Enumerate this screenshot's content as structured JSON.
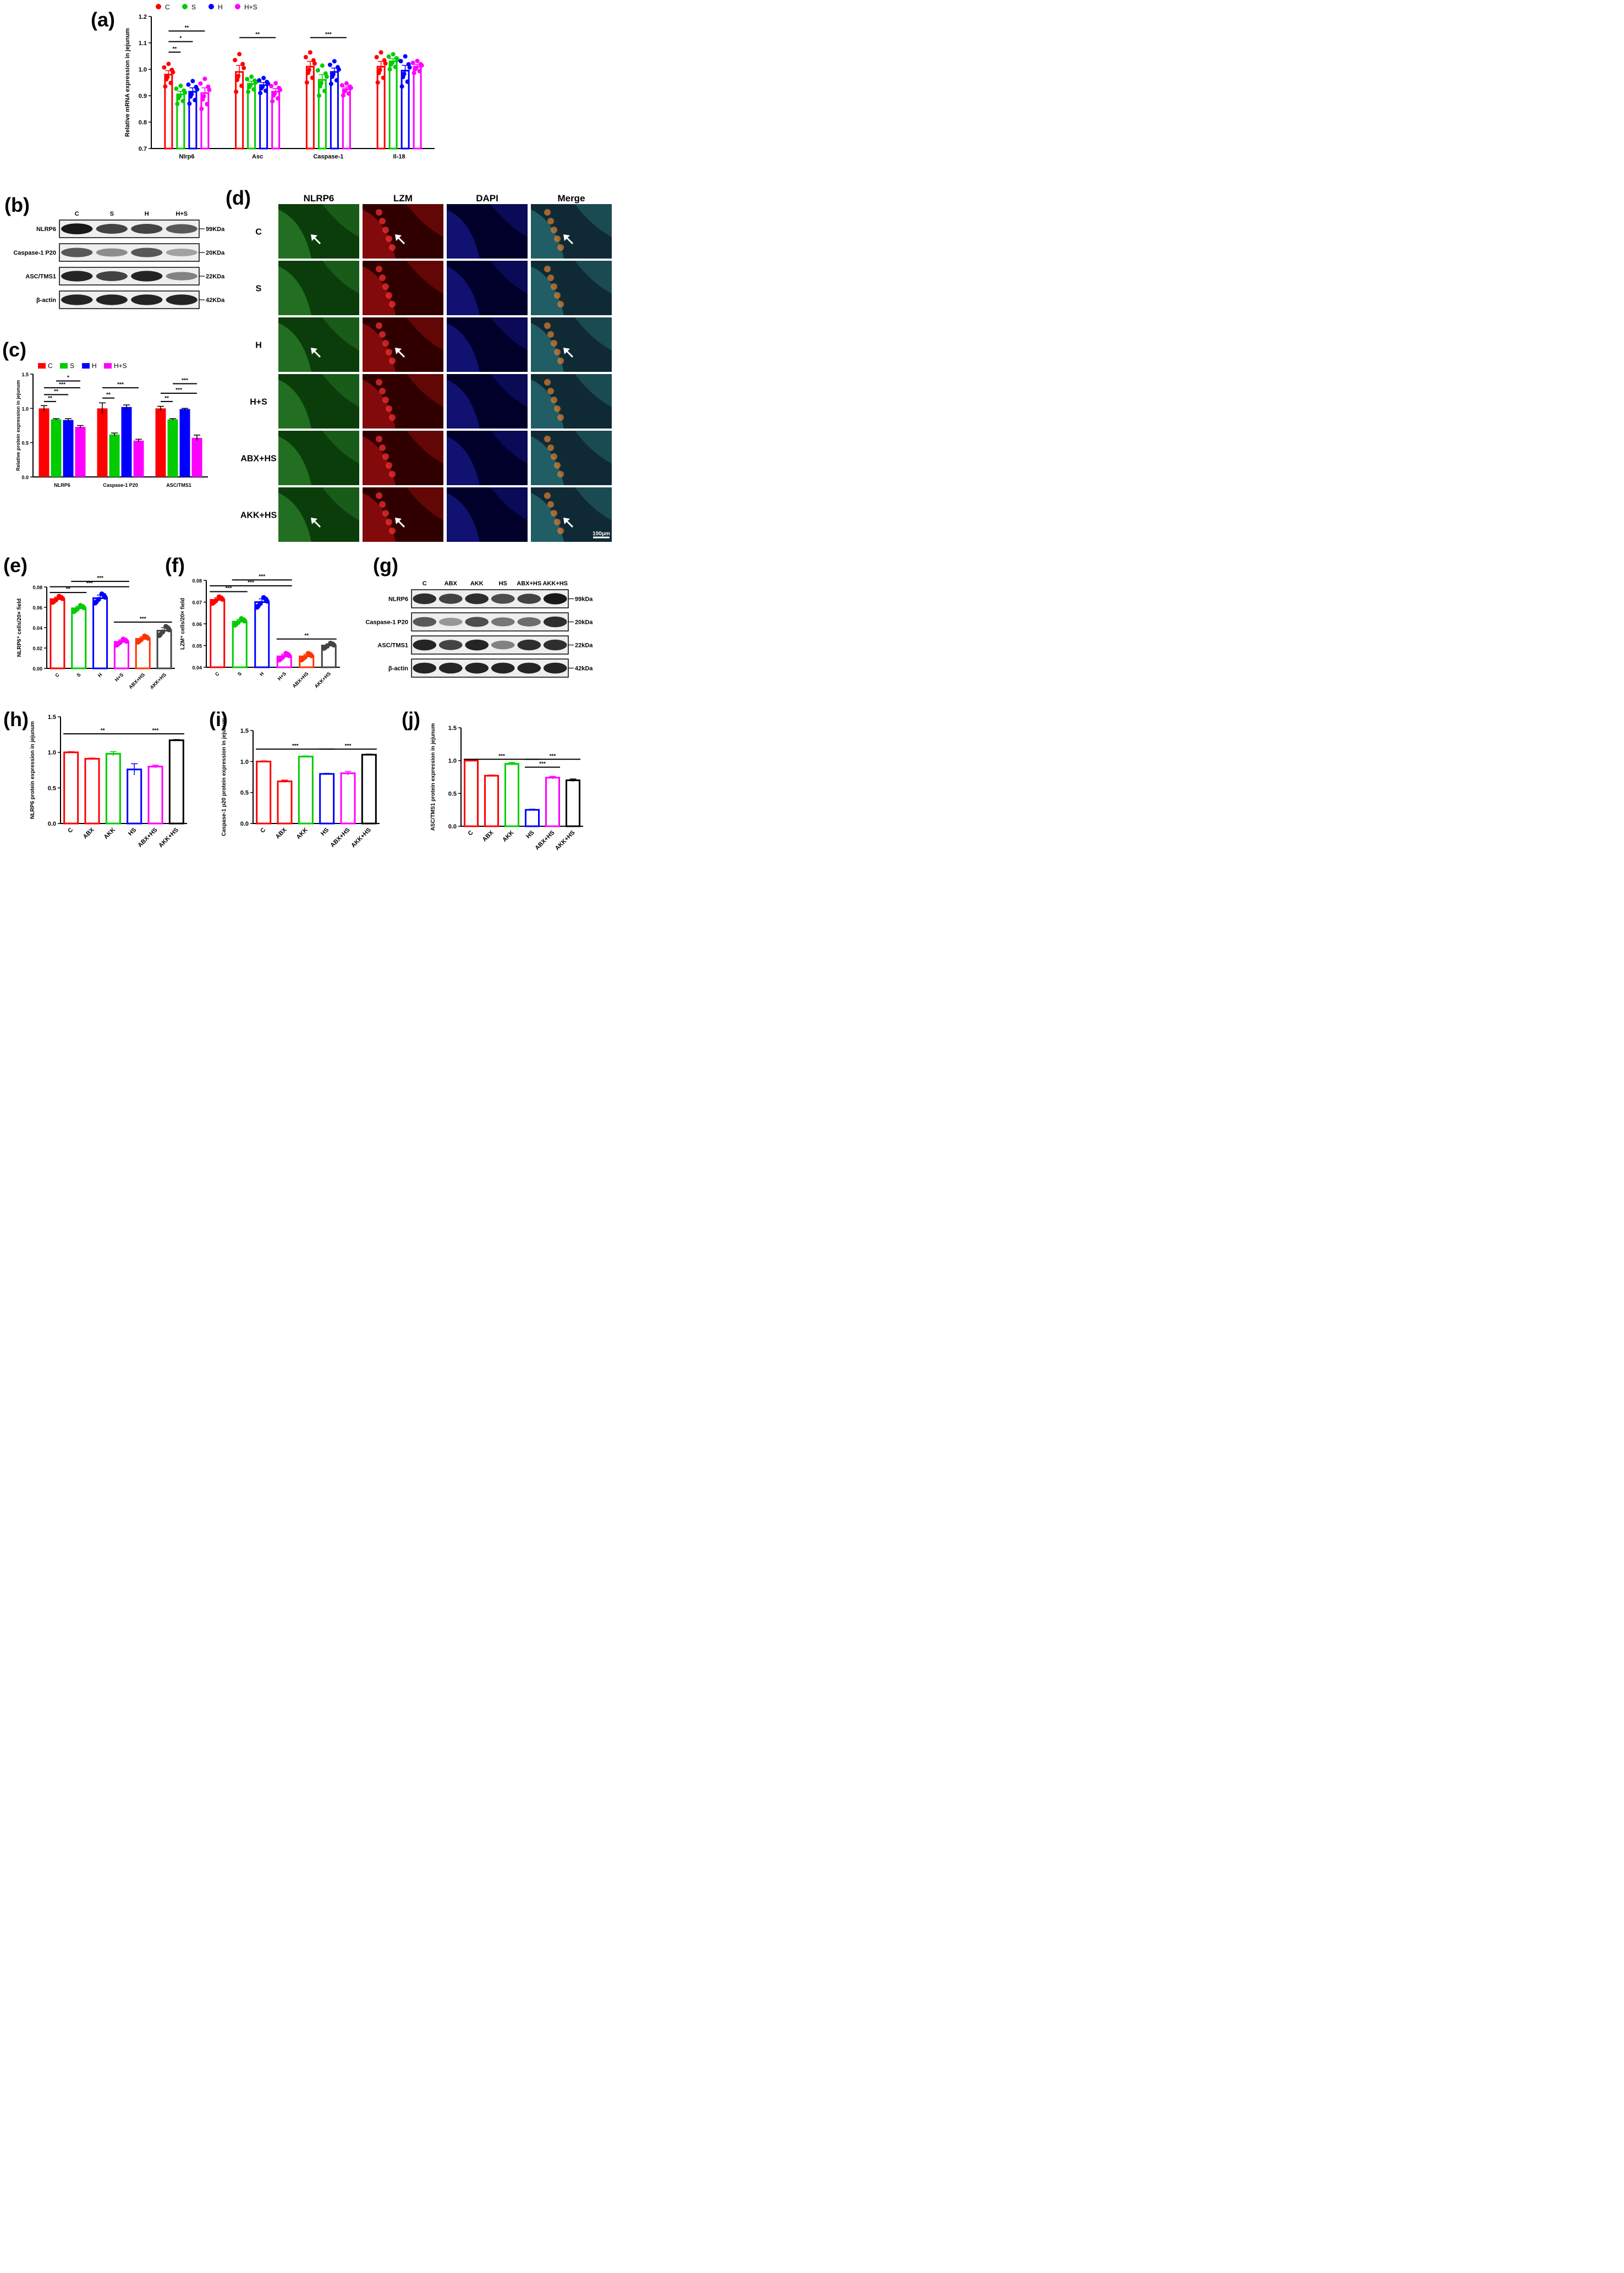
{
  "colors": {
    "C": "#ff0000",
    "S": "#00cc00",
    "H": "#0000ff",
    "H+S": "#ff00ff",
    "ABX": "#ff0000",
    "AKK": "#00cc00",
    "HS": "#0000ff",
    "ABX+HS": "#ff00ff",
    "AKK+HS": "#000000",
    "ABX+HS_e": "#ff3300",
    "AKK+HS_e": "#444444"
  },
  "panel_b": {
    "label": "(b)",
    "lanes": [
      "C",
      "S",
      "H",
      "H+S"
    ],
    "rows": [
      {
        "name": "NLRP6",
        "size": "99KDa",
        "intensity": [
          1.0,
          0.8,
          0.8,
          0.7
        ]
      },
      {
        "name": "Caspase-1 P20",
        "size": "20KDa",
        "intensity": [
          0.7,
          0.45,
          0.7,
          0.35
        ]
      },
      {
        "name": "ASC/TMS1",
        "size": "22KDa",
        "intensity": [
          0.95,
          0.8,
          0.95,
          0.5
        ]
      },
      {
        "name": "β-actin",
        "size": "42KDa",
        "intensity": [
          0.95,
          0.95,
          0.95,
          0.95
        ]
      }
    ]
  },
  "panel_d": {
    "label": "(d)",
    "columns": [
      "NLRP6",
      "LZM",
      "DAPI",
      "Merge"
    ],
    "rows": [
      "C",
      "S",
      "H",
      "H+S",
      "ABX+HS",
      "AKK+HS"
    ],
    "arrows": [
      true,
      false,
      true,
      false,
      false,
      true
    ],
    "scale_bar": "100μm"
  },
  "panel_g": {
    "label": "(g)",
    "lanes": [
      "C",
      "ABX",
      "AKK",
      "HS",
      "ABX+HS",
      "AKK+HS"
    ],
    "rows": [
      {
        "name": "NLRP6",
        "size": "99kDa",
        "intensity": [
          0.9,
          0.8,
          0.9,
          0.75,
          0.8,
          1.0
        ]
      },
      {
        "name": "Caspase-1 P20",
        "size": "20kDa",
        "intensity": [
          0.7,
          0.4,
          0.75,
          0.55,
          0.6,
          0.9
        ]
      },
      {
        "name": "ASC/TMS1",
        "size": "22kDa",
        "intensity": [
          0.95,
          0.8,
          0.95,
          0.5,
          0.9,
          0.9
        ]
      },
      {
        "name": "β-actin",
        "size": "42kDa",
        "intensity": [
          0.95,
          0.95,
          0.95,
          0.95,
          0.95,
          0.95
        ]
      }
    ]
  },
  "chart_data": [
    {
      "id": "a",
      "label": "(a)",
      "type": "bar",
      "ylabel": "Relative mRNA expression in jejunum",
      "ylim": [
        0.7,
        1.2
      ],
      "yticks": [
        0.7,
        0.8,
        0.9,
        1.0,
        1.1,
        1.2
      ],
      "categories": [
        "Nlrp6",
        "Asc",
        "Caspase-1",
        "Il-18"
      ],
      "legend": [
        "C",
        "S",
        "H",
        "H+S"
      ],
      "series": [
        {
          "name": "C",
          "values": [
            0.98,
            0.99,
            1.01,
            1.01
          ],
          "err": [
            0.015,
            0.025,
            0.02,
            0.02
          ]
        },
        {
          "name": "S",
          "values": [
            0.905,
            0.945,
            0.96,
            1.03
          ],
          "err": [
            0.012,
            0.01,
            0.02,
            0.01
          ]
        },
        {
          "name": "H",
          "values": [
            0.915,
            0.94,
            0.99,
            0.995
          ],
          "err": [
            0.015,
            0.01,
            0.015,
            0.02
          ]
        },
        {
          "name": "H+S",
          "values": [
            0.91,
            0.915,
            0.925,
            1.01
          ],
          "err": [
            0.02,
            0.012,
            0.008,
            0.008
          ]
        }
      ],
      "significance": [
        {
          "cat": 0,
          "from": 0,
          "to": 1,
          "label": "**",
          "y": 1.065
        },
        {
          "cat": 0,
          "from": 0,
          "to": 2,
          "label": "*",
          "y": 1.105
        },
        {
          "cat": 0,
          "from": 0,
          "to": 3,
          "label": "**",
          "y": 1.145
        },
        {
          "cat": 1,
          "from": 0,
          "to": 3,
          "label": "**",
          "y": 1.12
        },
        {
          "cat": 2,
          "from": 0,
          "to": 3,
          "label": "***",
          "y": 1.12
        }
      ]
    },
    {
      "id": "c",
      "label": "(c)",
      "type": "bar",
      "ylabel": "Relative protein expression in jejunum",
      "ylim": [
        0,
        1.5
      ],
      "yticks": [
        0.0,
        0.5,
        1.0,
        1.5
      ],
      "categories": [
        "NLRP6",
        "Caspase-1 P20",
        "ASC/TMS1"
      ],
      "legend": [
        "C",
        "S",
        "H",
        "H+S"
      ],
      "series": [
        {
          "name": "C",
          "values": [
            1.0,
            1.0,
            1.0
          ],
          "err": [
            0.04,
            0.08,
            0.03
          ]
        },
        {
          "name": "S",
          "values": [
            0.84,
            0.62,
            0.84
          ],
          "err": [
            0.01,
            0.02,
            0.01
          ]
        },
        {
          "name": "H",
          "values": [
            0.83,
            1.02,
            0.99
          ],
          "err": [
            0.02,
            0.03,
            0.01
          ]
        },
        {
          "name": "H+S",
          "values": [
            0.73,
            0.53,
            0.57
          ],
          "err": [
            0.02,
            0.02,
            0.04
          ]
        }
      ],
      "significance": [
        {
          "cat": 0,
          "from": 0,
          "to": 1,
          "label": "**",
          "y": 1.1
        },
        {
          "cat": 0,
          "from": 0,
          "to": 2,
          "label": "**",
          "y": 1.2
        },
        {
          "cat": 0,
          "from": 0,
          "to": 3,
          "label": "***",
          "y": 1.3
        },
        {
          "cat": 0,
          "from": 1,
          "to": 3,
          "label": "*",
          "y": 1.4
        },
        {
          "cat": 1,
          "from": 0,
          "to": 1,
          "label": "**",
          "y": 1.15
        },
        {
          "cat": 1,
          "from": 0,
          "to": 3,
          "label": "***",
          "y": 1.3
        },
        {
          "cat": 2,
          "from": 0,
          "to": 1,
          "label": "**",
          "y": 1.1
        },
        {
          "cat": 2,
          "from": 0,
          "to": 3,
          "label": "***",
          "y": 1.22
        },
        {
          "cat": 2,
          "from": 1,
          "to": 3,
          "label": "***",
          "y": 1.36
        }
      ]
    },
    {
      "id": "e",
      "label": "(e)",
      "type": "bar",
      "ylabel": "NLRP6⁺ cells/20× field",
      "ylim": [
        0,
        0.08
      ],
      "yticks": [
        0.0,
        0.02,
        0.04,
        0.06,
        0.08
      ],
      "ytick_labels": [
        "0.00",
        "0.02",
        "0.04",
        "0.06",
        "0.08"
      ],
      "categories": [
        "C",
        "S",
        "H",
        "H+S",
        "ABX+HS",
        "AKK+HS"
      ],
      "values": [
        0.068,
        0.059,
        0.069,
        0.026,
        0.029,
        0.037
      ],
      "err": [
        0.002,
        0.002,
        0.003,
        0.002,
        0.002,
        0.003
      ],
      "significance": [
        {
          "from": 0,
          "to": 1,
          "label": "**",
          "y": 0.0745
        },
        {
          "from": 0,
          "to": 3,
          "label": "***",
          "y": 0.0802
        },
        {
          "from": 1,
          "to": 3,
          "label": "***",
          "y": 0.0855
        },
        {
          "from": 3,
          "to": 5,
          "label": "***",
          "y": 0.0455
        }
      ]
    },
    {
      "id": "f",
      "label": "(f)",
      "type": "bar",
      "ylabel": "LZM⁺ cells/20× field",
      "ylim": [
        0.04,
        0.08
      ],
      "yticks": [
        0.04,
        0.05,
        0.06,
        0.07,
        0.08
      ],
      "categories": [
        "C",
        "S",
        "H",
        "H+S",
        "ABX+HS",
        "AKK+HS"
      ],
      "values": [
        0.071,
        0.061,
        0.07,
        0.045,
        0.045,
        0.05
      ],
      "err": [
        0.001,
        0.001,
        0.0015,
        0.001,
        0.001,
        0.0008
      ],
      "significance": [
        {
          "from": 0,
          "to": 1,
          "label": "***",
          "y": 0.0748
        },
        {
          "from": 0,
          "to": 3,
          "label": "***",
          "y": 0.0775
        },
        {
          "from": 1,
          "to": 3,
          "label": "***",
          "y": 0.0802
        },
        {
          "from": 3,
          "to": 5,
          "label": "**",
          "y": 0.053
        }
      ]
    },
    {
      "id": "h",
      "label": "(h)",
      "type": "bar",
      "ylabel": "NLRP6 protein expression in jejunum",
      "ylim": [
        0,
        1.5
      ],
      "yticks": [
        0.0,
        0.5,
        1.0,
        1.5
      ],
      "categories": [
        "C",
        "ABX",
        "AKK",
        "HS",
        "ABX+HS",
        "AKK+HS"
      ],
      "values": [
        1.0,
        0.91,
        0.98,
        0.76,
        0.8,
        1.17
      ],
      "err": [
        0.01,
        0.01,
        0.03,
        0.08,
        0.02,
        0.01
      ],
      "significance": [
        {
          "from": 0,
          "to": 3,
          "label": "**",
          "y": 1.26
        },
        {
          "from": 3,
          "to": 5,
          "label": "***",
          "y": 1.26
        }
      ]
    },
    {
      "id": "i",
      "label": "(i)",
      "type": "bar",
      "ylabel": "Caspase-1 p20 protein expression in jejunum",
      "ylim": [
        0,
        1.5
      ],
      "yticks": [
        0.0,
        0.5,
        1.0,
        1.5
      ],
      "categories": [
        "C",
        "ABX",
        "AKK",
        "HS",
        "ABX+HS",
        "AKK+HS"
      ],
      "values": [
        1.0,
        0.68,
        1.08,
        0.8,
        0.81,
        1.11
      ],
      "err": [
        0.01,
        0.02,
        0.01,
        0.01,
        0.03,
        0.01
      ],
      "significance": [
        {
          "from": 0,
          "to": 3,
          "label": "***",
          "y": 1.2
        },
        {
          "from": 3,
          "to": 5,
          "label": "***",
          "y": 1.2
        }
      ]
    },
    {
      "id": "j",
      "label": "(j)",
      "type": "bar",
      "ylabel": "ASC/TMS1 protein expression in jejunum",
      "ylim": [
        0,
        1.5
      ],
      "yticks": [
        0.0,
        0.5,
        1.0,
        1.5
      ],
      "categories": [
        "C",
        "ABX",
        "AKK",
        "HS",
        "ABX+HS",
        "AKK+HS"
      ],
      "values": [
        1.0,
        0.77,
        0.95,
        0.25,
        0.74,
        0.7
      ],
      "err": [
        0.01,
        0.01,
        0.02,
        0.01,
        0.02,
        0.02
      ],
      "significance": [
        {
          "from": 0,
          "to": 3,
          "label": "***",
          "y": 1.02
        },
        {
          "from": 3,
          "to": 4,
          "label": "***",
          "y": 0.9
        },
        {
          "from": 3,
          "to": 5,
          "label": "***",
          "y": 1.02
        }
      ]
    }
  ]
}
